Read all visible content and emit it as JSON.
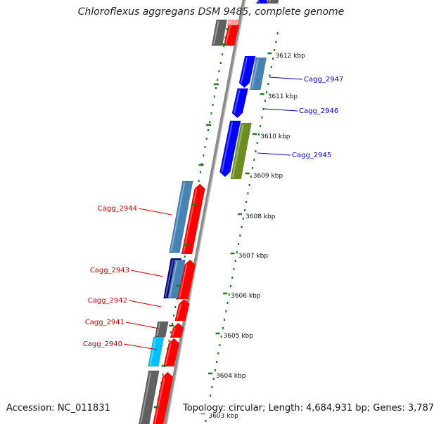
{
  "title": "Chloroflexus aggregans DSM 9485, complete genome",
  "accession_text": "Accession: NC_011831",
  "topology_text": "Topology: circular; Length: 4,684,931 bp; Genes: 3,787",
  "colors": {
    "backbone": "#8c8c8c",
    "ruler_dots": "#1a7a1a",
    "label_plus": "#0000cc",
    "label_minus": "#cc0000",
    "red": "#ff0000",
    "blue": "#0000ff",
    "steelblue": "#4682b4",
    "navy": "#00007a",
    "olive": "#6b8e23",
    "cyan": "#00bfff",
    "gray": "#606060",
    "pink": "#ff9a9a"
  },
  "kbp_ticks": [
    "3612 kbp",
    "3611 kbp",
    "3610 kbp",
    "3609 kbp",
    "3608 kbp",
    "3607 kbp",
    "3606 kbp",
    "3605 kbp",
    "3604 kbp",
    "3603 kbp"
  ],
  "gene_labels": [
    {
      "name": "Cagg_2947",
      "strand": "+"
    },
    {
      "name": "Cagg_2946",
      "strand": "+"
    },
    {
      "name": "Cagg_2945",
      "strand": "+"
    },
    {
      "name": "Cagg_2944",
      "strand": "-"
    },
    {
      "name": "Cagg_2943",
      "strand": "-"
    },
    {
      "name": "Cagg_2942",
      "strand": "-"
    },
    {
      "name": "Cagg_2941",
      "strand": "-"
    },
    {
      "name": "Cagg_2940",
      "strand": "-"
    }
  ]
}
